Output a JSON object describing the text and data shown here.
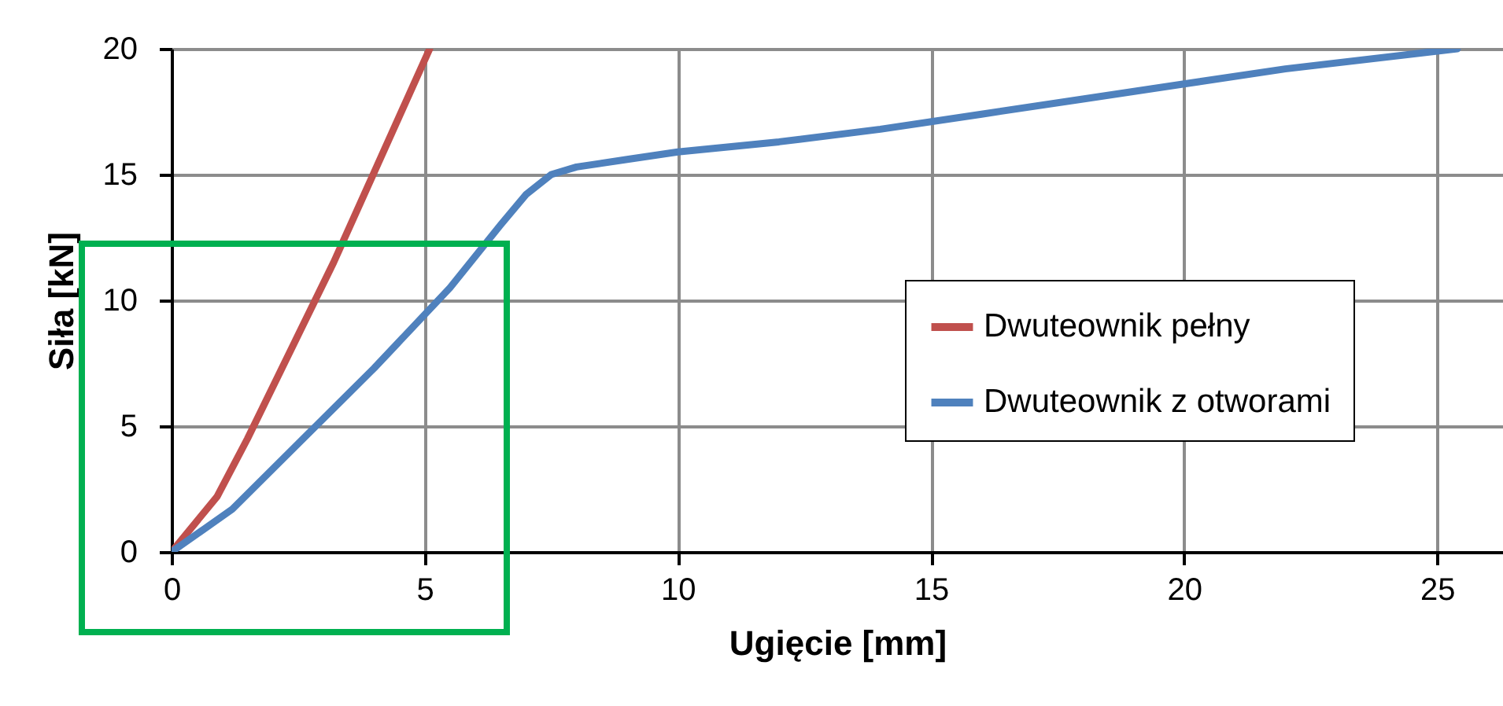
{
  "chart_data": {
    "type": "line",
    "xlabel": "Ugięcie [mm]",
    "ylabel": "Siła [kN]",
    "xlim": [
      0,
      26.3
    ],
    "xticks": [
      0,
      5,
      10,
      15,
      20,
      25
    ],
    "ylim": [
      0,
      20
    ],
    "yticks": [
      0,
      5,
      10,
      15,
      20
    ],
    "grid": true,
    "legend": "right",
    "series": [
      {
        "name": "Dwuteownik pełny",
        "color": "#c0504d",
        "x": [
          0,
          0.9,
          1.5,
          3.2,
          5.1
        ],
        "values": [
          0,
          2.2,
          4.5,
          11.5,
          20
        ]
      },
      {
        "name": "Dwuteownik z otworami",
        "color": "#4f81bd",
        "x": [
          0,
          1.2,
          2.5,
          4,
          5.5,
          6.5,
          7,
          7.5,
          8,
          9,
          10,
          12,
          14,
          16,
          18,
          20,
          22,
          25.4
        ],
        "values": [
          0,
          1.7,
          4.3,
          7.3,
          10.5,
          13,
          14.2,
          15,
          15.3,
          15.6,
          15.9,
          16.3,
          16.8,
          17.4,
          18,
          18.6,
          19.2,
          20
        ]
      }
    ]
  }
}
